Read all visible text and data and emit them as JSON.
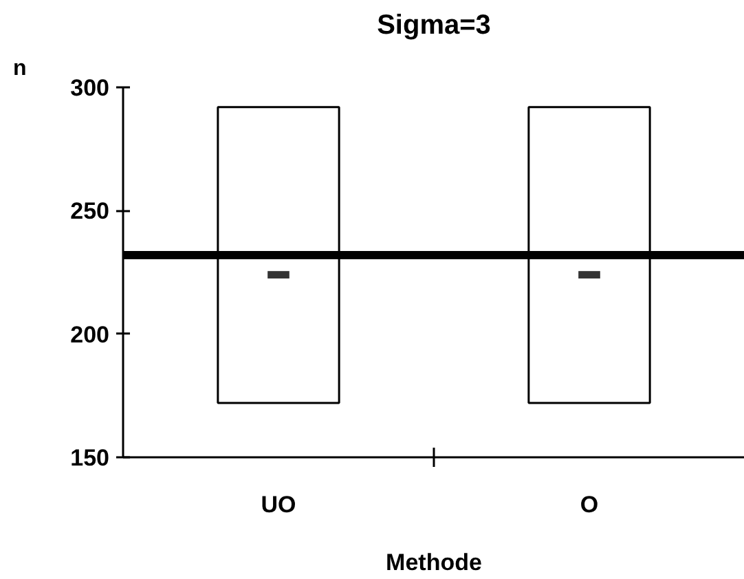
{
  "chart_data": {
    "type": "bar",
    "title": "Sigma=3",
    "xlabel": "Methode",
    "ylabel": "n",
    "categories": [
      "UO",
      "O"
    ],
    "series": [
      {
        "color": "#ffffff",
        "values": [
          120,
          120
        ],
        "base": [
          172,
          172
        ]
      },
      {
        "type": "scatter",
        "color": "#333333",
        "values": [
          224,
          224
        ]
      }
    ],
    "ylim": [
      150,
      300
    ],
    "yticks": [
      150,
      200,
      250,
      300
    ],
    "ref_lines": [
      {
        "axis": "y",
        "value": 232,
        "color": "#000000"
      }
    ],
    "grid": false
  }
}
